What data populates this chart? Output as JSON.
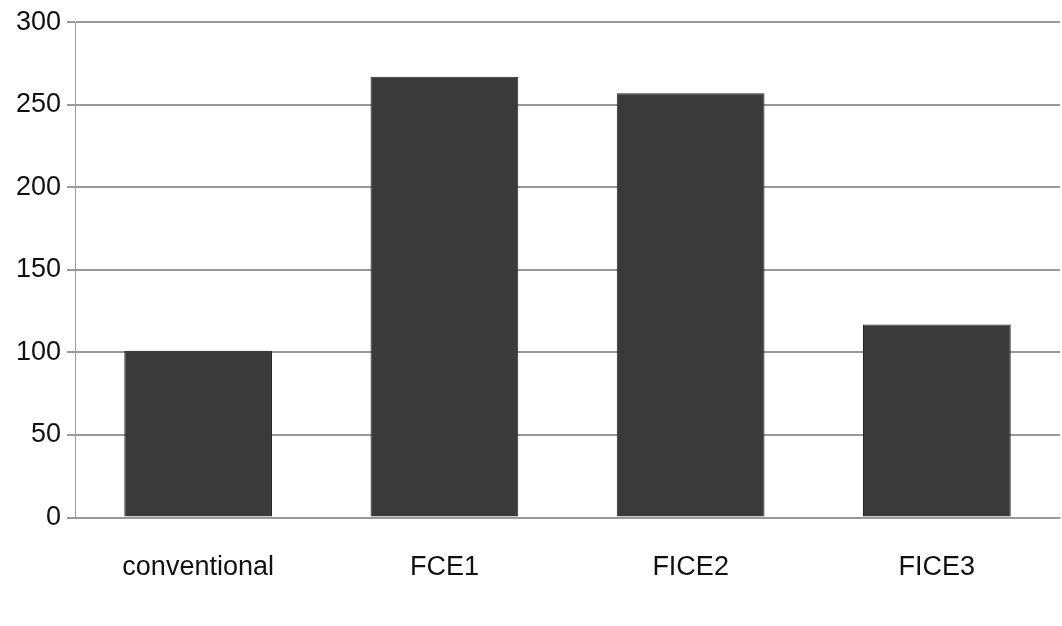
{
  "chart_data": {
    "type": "bar",
    "categories": [
      "conventional",
      "FCE1",
      "FICE2",
      "FICE3"
    ],
    "values": [
      101,
      267,
      257,
      117
    ],
    "color": "#3a3a3a",
    "ylim": [
      0,
      300
    ],
    "yticks": [
      0,
      50,
      100,
      150,
      200,
      250,
      300
    ],
    "grid": "y",
    "legend": false
  }
}
